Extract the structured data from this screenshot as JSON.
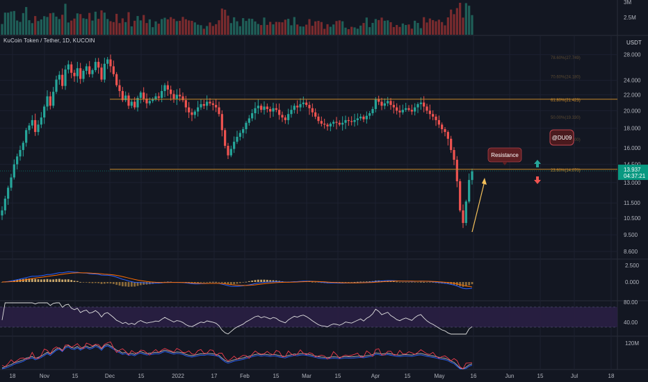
{
  "header": {
    "symbol_title": "KuCoin Token / Tether, 1D, KUCOIN"
  },
  "price_axis": {
    "currency": "USDT",
    "ticks": [
      "28.000",
      "24.000",
      "22.000",
      "20.000",
      "18.000",
      "16.000",
      "14.500",
      "13.000",
      "11.500",
      "10.500",
      "9.500",
      "8.600"
    ],
    "current_price": "13.937",
    "countdown": "04:37:21",
    "current_price_color": "#089981"
  },
  "volume_axis": {
    "ticks": [
      "3M",
      "2.5M"
    ]
  },
  "macd_axis": {
    "ticks": [
      "2.500",
      "0.000"
    ]
  },
  "rsi_axis": {
    "ticks": [
      "80.00",
      "40.00"
    ]
  },
  "obv_axis": {
    "ticks": [
      "120M"
    ]
  },
  "x_axis": {
    "ticks": [
      "18",
      "Nov",
      "15",
      "Dec",
      "15",
      "2022",
      "17",
      "Feb",
      "15",
      "Mar",
      "15",
      "Apr",
      "15",
      "May",
      "16",
      "Jun",
      "15",
      "Jul",
      "18"
    ]
  },
  "annotations": {
    "resistance_label": "Resistance",
    "author_tag": "@DU09",
    "fib_61": "61.80%(21.423)",
    "fib_23": "23.60%(14.070)",
    "fib_100": "78.60%(27.749)",
    "fib_70": "70.60%(24.180)",
    "fib_50": "50.00%(19.330)",
    "fib_38": "38.20%(17.200)"
  },
  "colors": {
    "background": "#131722",
    "up": "#26a69a",
    "down": "#ef5350",
    "fib_line": "#c98a2b",
    "arrow_up": "#26a69a",
    "arrow_down": "#ef5350",
    "projection": "#f5c15a",
    "rsi_band": "#2a1f44",
    "macd_line": "#2962ff",
    "signal_line": "#ff6d00"
  },
  "chart_data": {
    "type": "candlestick",
    "title": "KuCoin Token / Tether, 1D, KUCOIN",
    "ylabel": "USDT",
    "ylim": [
      8.6,
      30
    ],
    "y_scale": "log",
    "x_range": [
      "Oct 18 2021",
      "May 12 2022"
    ],
    "close_series": [
      11.0,
      11.8,
      12.6,
      13.4,
      14.5,
      15.2,
      15.8,
      16.5,
      17.8,
      18.3,
      18.9,
      17.6,
      18.4,
      19.2,
      20.5,
      21.8,
      20.6,
      22.4,
      24.1,
      24.8,
      23.2,
      25.6,
      26.4,
      25.1,
      24.6,
      25.8,
      24.2,
      25.4,
      26.1,
      24.9,
      25.5,
      26.8,
      25.9,
      24.1,
      26.5,
      27.2,
      26.1,
      24.9,
      23.3,
      22.5,
      21.3,
      21.9,
      20.6,
      21.1,
      20.4,
      21.6,
      22.3,
      21.5,
      20.9,
      21.2,
      21.4,
      21.8,
      21.6,
      22.5,
      23.3,
      22.7,
      22.1,
      21.5,
      22.0,
      21.8,
      21.3,
      20.4,
      19.8,
      19.5,
      19.9,
      20.4,
      20.8,
      20.6,
      21.1,
      20.9,
      20.7,
      20.4,
      19.6,
      17.8,
      16.2,
      15.3,
      15.9,
      16.6,
      17.1,
      17.5,
      17.9,
      18.6,
      19.1,
      19.7,
      20.3,
      20.6,
      20.1,
      20.5,
      20.2,
      19.9,
      20.3,
      20.1,
      19.5,
      19.2,
      18.9,
      19.6,
      20.1,
      20.6,
      20.4,
      20.8,
      21.0,
      20.7,
      20.3,
      19.8,
      19.3,
      18.8,
      18.5,
      18.4,
      18.2,
      18.5,
      18.7,
      18.6,
      18.4,
      18.6,
      18.9,
      18.8,
      18.7,
      18.9,
      19.1,
      19.3,
      19.0,
      19.4,
      19.7,
      20.2,
      21.4,
      21.1,
      20.6,
      20.9,
      21.2,
      20.7,
      20.4,
      20.0,
      19.8,
      20.1,
      20.3,
      20.1,
      19.9,
      20.4,
      20.8,
      21.0,
      20.5,
      20.0,
      19.6,
      19.3,
      18.9,
      18.4,
      17.9,
      17.6,
      16.9,
      15.8,
      14.9,
      13.1,
      11.0,
      10.2,
      11.6,
      13.2,
      13.9
    ],
    "fib_levels": [
      {
        "label": "61.80%(21.423)",
        "value": 21.423
      },
      {
        "label": "23.60%(14.070)",
        "value": 14.07
      }
    ],
    "legend": "none",
    "grid": true
  }
}
